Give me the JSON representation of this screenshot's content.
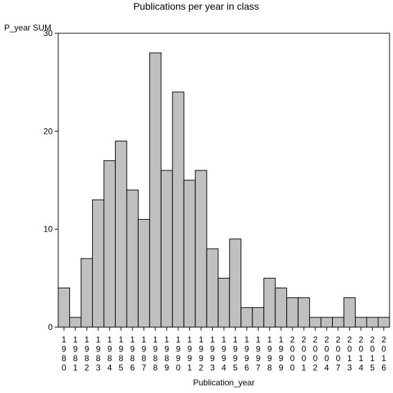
{
  "chart_data": {
    "type": "bar",
    "title": "Publications per year in class",
    "ylabel": "P_year SUM",
    "xlabel": "Publication_year",
    "ylim": [
      0,
      30
    ],
    "yticks": [
      0,
      10,
      20,
      30
    ],
    "grid": false,
    "bar_color": "#c0c0c0",
    "categories": [
      "1980",
      "1981",
      "1982",
      "1983",
      "1984",
      "1985",
      "1986",
      "1987",
      "1988",
      "1989",
      "1990",
      "1991",
      "1992",
      "1993",
      "1994",
      "1995",
      "1996",
      "1997",
      "1998",
      "1999",
      "2000",
      "2001",
      "2002",
      "2004",
      "2007",
      "2013",
      "2014",
      "2015",
      "2016"
    ],
    "values": [
      4,
      1,
      7,
      13,
      17,
      19,
      14,
      11,
      28,
      16,
      24,
      15,
      16,
      8,
      5,
      9,
      2,
      2,
      5,
      4,
      3,
      3,
      1,
      1,
      1,
      3,
      1,
      1,
      1
    ]
  }
}
